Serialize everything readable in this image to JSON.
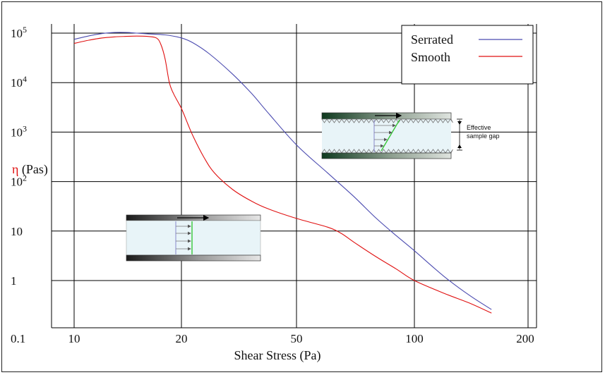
{
  "chart_data": {
    "type": "line",
    "title": "",
    "xlabel": "Shear Stress (Pa)",
    "ylabel_symbol": "η",
    "ylabel_unit": " (Pas)",
    "x_ticks": [
      {
        "label": "10",
        "value": 10
      },
      {
        "label": "20",
        "value": 20
      },
      {
        "label": "50",
        "value": 50
      },
      {
        "label": "100",
        "value": 100
      },
      {
        "label": "200",
        "value": 200
      }
    ],
    "y_ticks": [
      {
        "mant": "10",
        "sup": "5",
        "value": 100000
      },
      {
        "mant": "10",
        "sup": "4",
        "value": 10000
      },
      {
        "mant": "10",
        "sup": "3",
        "value": 1000
      },
      {
        "mant": "10",
        "sup": "2",
        "value": 100
      },
      {
        "mant": "10",
        "sup": "",
        "value": 10
      },
      {
        "mant": "1",
        "sup": "",
        "value": 1
      },
      {
        "mant": "0.1",
        "sup": "",
        "value": 0.1
      }
    ],
    "grid": true,
    "legend_position": "top-right",
    "series": [
      {
        "name": "Serrated",
        "color": "#4b4bb0",
        "points": [
          [
            10,
            75000
          ],
          [
            11,
            88000
          ],
          [
            12,
            98000
          ],
          [
            13,
            103000
          ],
          [
            14,
            103000
          ],
          [
            15,
            100000
          ],
          [
            16,
            97000
          ],
          [
            18,
            92000
          ],
          [
            20,
            80000
          ],
          [
            22,
            63000
          ],
          [
            25,
            38000
          ],
          [
            30,
            15000
          ],
          [
            35,
            6000
          ],
          [
            40,
            2400
          ],
          [
            50,
            550
          ],
          [
            60,
            150
          ],
          [
            70,
            50
          ],
          [
            80,
            18
          ],
          [
            90,
            8
          ],
          [
            100,
            4
          ],
          [
            120,
            1.2
          ],
          [
            140,
            0.5
          ],
          [
            160,
            0.26
          ]
        ]
      },
      {
        "name": "Smooth",
        "color": "#e01010",
        "points": [
          [
            10,
            62000
          ],
          [
            11,
            72000
          ],
          [
            12,
            80000
          ],
          [
            13,
            84000
          ],
          [
            14,
            86000
          ],
          [
            15,
            87000
          ],
          [
            16,
            86000
          ],
          [
            17,
            80000
          ],
          [
            17.5,
            60000
          ],
          [
            18,
            30000
          ],
          [
            18.5,
            10000
          ],
          [
            19,
            6000
          ],
          [
            20,
            3000
          ],
          [
            21,
            1500
          ],
          [
            22,
            800
          ],
          [
            24,
            300
          ],
          [
            26,
            150
          ],
          [
            30,
            70
          ],
          [
            35,
            40
          ],
          [
            40,
            28
          ],
          [
            50,
            18
          ],
          [
            60,
            12
          ],
          [
            65,
            9
          ],
          [
            70,
            6
          ],
          [
            80,
            3
          ],
          [
            90,
            1.7
          ],
          [
            100,
            1
          ],
          [
            120,
            0.55
          ],
          [
            140,
            0.35
          ],
          [
            160,
            0.22
          ]
        ]
      }
    ]
  },
  "annotations": {
    "serrated_gap": {
      "line1": "Effective",
      "line2": "sample gap"
    }
  },
  "colors": {
    "bg": "#ffffff",
    "grid": "#000000",
    "fluid": "#e8f4f8",
    "flow_arrow": "#8888cc",
    "profile_green": "#38c838",
    "plate_dark": "#0f3a1f",
    "plate_smooth_dark": "#1a1a1a"
  }
}
